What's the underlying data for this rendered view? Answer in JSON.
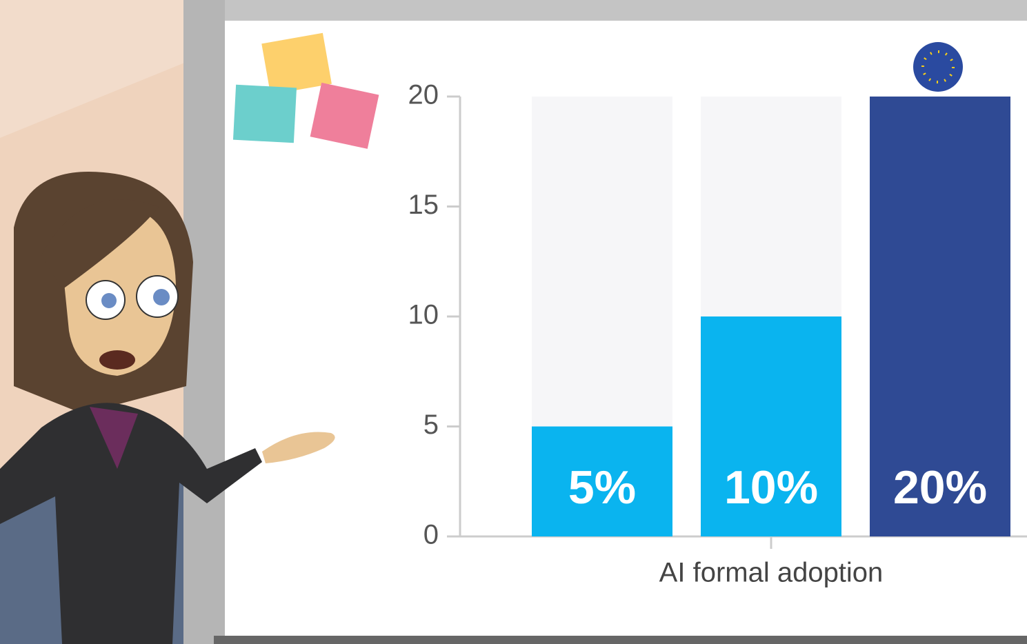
{
  "chart_data": {
    "type": "bar",
    "categories": [
      "AI formal adoption"
    ],
    "series": [
      {
        "color": "#0ab4ef",
        "values": [
          5
        ],
        "value_labels": [
          "5%"
        ]
      },
      {
        "color": "#0ab4ef",
        "values": [
          10
        ],
        "value_labels": [
          "10%"
        ]
      },
      {
        "color": "#2f4a94",
        "values": [
          20
        ],
        "value_labels": [
          "20%"
        ]
      }
    ],
    "ylim": [
      0,
      20
    ],
    "yticks": [
      0,
      5,
      10,
      15,
      20
    ]
  }
}
